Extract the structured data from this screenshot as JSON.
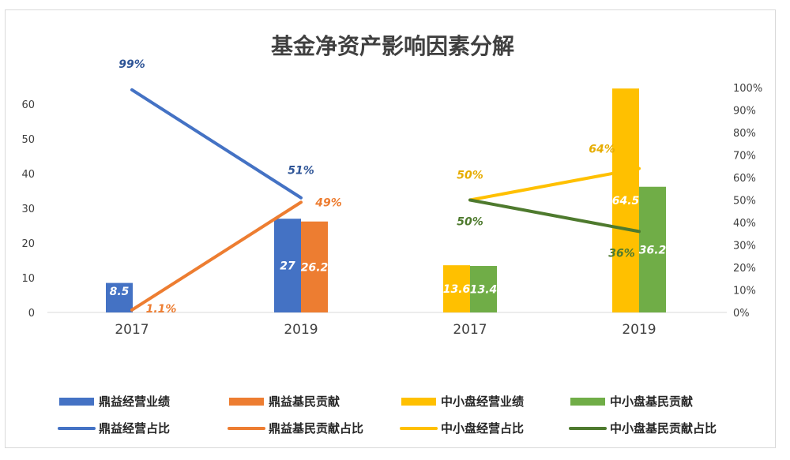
{
  "chart_data": {
    "type": "bar",
    "title": "基金净资产影响因素分解",
    "categories": [
      "2017",
      "2019",
      "2017",
      "2019"
    ],
    "y_left": {
      "ylim": [
        0,
        60
      ],
      "ticks": [
        "0",
        "10",
        "20",
        "30",
        "40",
        "50",
        "60"
      ]
    },
    "y_right": {
      "ylim": [
        0,
        1.0
      ],
      "ticks": [
        "0%",
        "10%",
        "20%",
        "30%",
        "40%",
        "50%",
        "60%",
        "70%",
        "80%",
        "90%",
        "100%"
      ]
    },
    "grid": false,
    "legend_position": "bottom",
    "bar_series": [
      {
        "name": "鼎益经营业绩",
        "color": "#4472c4",
        "values": [
          8.5,
          27,
          null,
          null
        ],
        "labels": [
          "8.5",
          "27",
          "",
          ""
        ]
      },
      {
        "name": "鼎益基民贡献",
        "color": "#ed7d31",
        "values": [
          null,
          26.2,
          null,
          null
        ],
        "labels": [
          "",
          "26.2",
          "",
          ""
        ]
      },
      {
        "name": "中小盘经营业绩",
        "color": "#ffc000",
        "values": [
          null,
          null,
          13.6,
          64.5
        ],
        "labels": [
          "",
          "",
          "13.6",
          "64.5"
        ]
      },
      {
        "name": "中小盘基民贡献",
        "color": "#70ad47",
        "values": [
          null,
          null,
          13.4,
          36.2
        ],
        "labels": [
          "",
          "",
          "13.4",
          "36.2"
        ]
      }
    ],
    "line_series": [
      {
        "name": "鼎益经营占比",
        "color": "#4472c4",
        "label_color": "#2f5597",
        "values": [
          0.99,
          0.51,
          null,
          null
        ],
        "labels": [
          "99%",
          "51%",
          "",
          ""
        ]
      },
      {
        "name": "鼎益基民贡献占比",
        "color": "#ed7d31",
        "label_color": "#ed7d31",
        "values": [
          0.011,
          0.49,
          null,
          null
        ],
        "labels": [
          "1.1%",
          "49%",
          "",
          ""
        ]
      },
      {
        "name": "中小盘经营占比",
        "color": "#ffc000",
        "label_color": "#e6ac00",
        "values": [
          null,
          null,
          0.5,
          0.64
        ],
        "labels": [
          "",
          "",
          "50%",
          "64%"
        ]
      },
      {
        "name": "中小盘基民贡献占比",
        "color": "#4e7a2e",
        "label_color": "#4e7a2e",
        "values": [
          null,
          null,
          0.5,
          0.36
        ],
        "labels": [
          "",
          "",
          "50%",
          "36%"
        ]
      }
    ]
  }
}
